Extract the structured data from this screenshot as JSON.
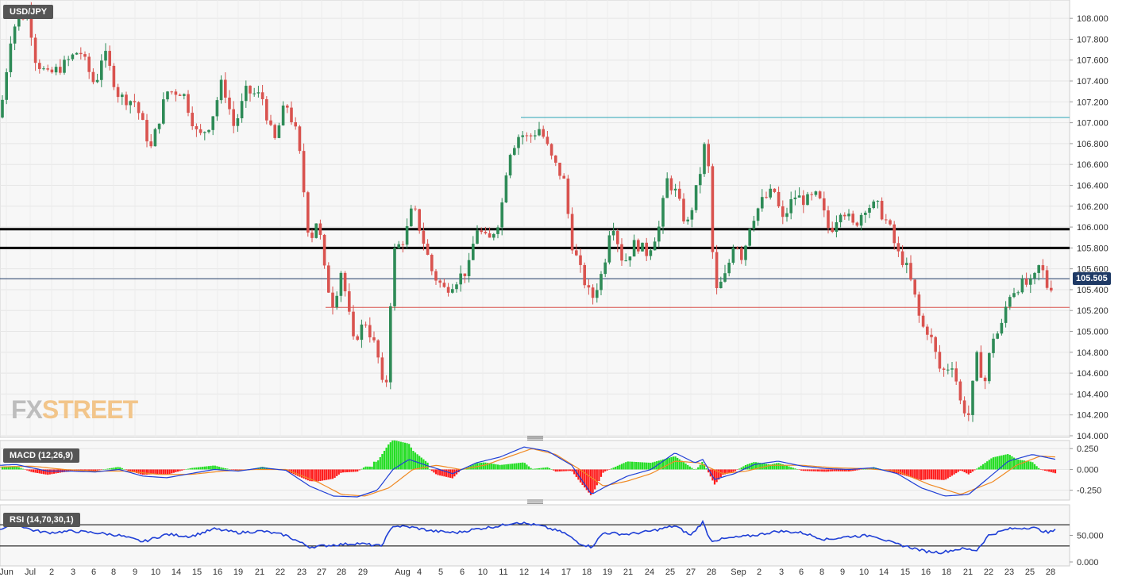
{
  "symbol": "USD/JPY",
  "macd_label": "MACD (12,26,9)",
  "rsi_label": "RSI (14,70,30,1)",
  "watermark": {
    "part1": "FX",
    "part2": "STREET"
  },
  "last_price": "105.505",
  "colors": {
    "up": "#2e8b57",
    "down": "#d9534f",
    "macd_line": "#1f3fd6",
    "signal_line": "#f08a24",
    "hist_up": "#22dd22",
    "hist_down": "#ff1a1a",
    "rsi_line": "#1f3fd6"
  },
  "chart_data": [
    {
      "type": "candlestick",
      "title": "USD/JPY",
      "ylim": [
        104.0,
        108.1
      ],
      "yticks": [
        "108.000",
        "107.800",
        "107.600",
        "107.400",
        "107.200",
        "107.000",
        "106.800",
        "106.600",
        "106.400",
        "106.200",
        "106.000",
        "105.800",
        "105.600",
        "105.400",
        "105.200",
        "105.000",
        "104.800",
        "104.600",
        "104.400",
        "104.200",
        "104.000"
      ],
      "xticks": [
        "Jun",
        "Jul",
        "2",
        "3",
        "6",
        "8",
        "9",
        "10",
        "14",
        "15",
        "16",
        "19",
        "21",
        "22",
        "23",
        "27",
        "28",
        "29",
        "Aug",
        "4",
        "5",
        "6",
        "10",
        "11",
        "12",
        "14",
        "17",
        "18",
        "19",
        "21",
        "24",
        "25",
        "27",
        "28",
        "Sep",
        "2",
        "3",
        "6",
        "8",
        "9",
        "10",
        "14",
        "15",
        "16",
        "18",
        "21",
        "22",
        "23",
        "25",
        "28"
      ],
      "horizontal_levels": [
        {
          "value": 107.05,
          "color": "#2aa3b5"
        },
        {
          "value": 105.98,
          "color": "#000000"
        },
        {
          "value": 105.8,
          "color": "#000000"
        },
        {
          "value": 105.505,
          "color": "#1f3a66"
        },
        {
          "value": 105.23,
          "color": "#d9534f"
        }
      ],
      "price_path": [
        [
          0,
          107.05
        ],
        [
          15,
          107.9
        ],
        [
          35,
          108.08
        ],
        [
          45,
          107.6
        ],
        [
          60,
          107.45
        ],
        [
          80,
          107.55
        ],
        [
          100,
          107.7
        ],
        [
          120,
          107.35
        ],
        [
          130,
          107.7
        ],
        [
          150,
          107.25
        ],
        [
          170,
          107.2
        ],
        [
          190,
          106.75
        ],
        [
          210,
          107.3
        ],
        [
          230,
          107.3
        ],
        [
          250,
          106.85
        ],
        [
          265,
          107.0
        ],
        [
          280,
          107.4
        ],
        [
          295,
          106.95
        ],
        [
          310,
          107.3
        ],
        [
          330,
          107.25
        ],
        [
          345,
          106.8
        ],
        [
          360,
          107.2
        ],
        [
          375,
          106.85
        ],
        [
          390,
          105.85
        ],
        [
          400,
          106.1
        ],
        [
          410,
          105.5
        ],
        [
          420,
          105.25
        ],
        [
          430,
          105.6
        ],
        [
          445,
          104.9
        ],
        [
          460,
          105.1
        ],
        [
          475,
          104.8
        ],
        [
          485,
          104.3
        ],
        [
          495,
          105.75
        ],
        [
          510,
          105.9
        ],
        [
          520,
          106.2
        ],
        [
          530,
          105.95
        ],
        [
          545,
          105.55
        ],
        [
          560,
          105.4
        ],
        [
          575,
          105.5
        ],
        [
          590,
          105.6
        ],
        [
          600,
          106.0
        ],
        [
          615,
          105.85
        ],
        [
          630,
          106.1
        ],
        [
          640,
          106.7
        ],
        [
          655,
          106.9
        ],
        [
          665,
          106.85
        ],
        [
          680,
          106.95
        ],
        [
          695,
          106.65
        ],
        [
          710,
          106.45
        ],
        [
          720,
          105.85
        ],
        [
          730,
          105.6
        ],
        [
          745,
          105.3
        ],
        [
          760,
          105.6
        ],
        [
          770,
          106.1
        ],
        [
          785,
          105.65
        ],
        [
          800,
          105.85
        ],
        [
          815,
          105.75
        ],
        [
          830,
          106.0
        ],
        [
          840,
          106.45
        ],
        [
          850,
          106.35
        ],
        [
          865,
          106.0
        ],
        [
          880,
          106.45
        ],
        [
          890,
          106.9
        ],
        [
          900,
          105.35
        ],
        [
          915,
          105.55
        ],
        [
          925,
          105.9
        ],
        [
          935,
          105.7
        ],
        [
          945,
          106.05
        ],
        [
          960,
          106.25
        ],
        [
          975,
          106.35
        ],
        [
          985,
          106.05
        ],
        [
          1000,
          106.3
        ],
        [
          1015,
          106.25
        ],
        [
          1030,
          106.3
        ],
        [
          1045,
          105.95
        ],
        [
          1060,
          106.2
        ],
        [
          1075,
          106.0
        ],
        [
          1090,
          106.2
        ],
        [
          1105,
          106.2
        ],
        [
          1120,
          106.0
        ],
        [
          1130,
          105.75
        ],
        [
          1140,
          105.65
        ],
        [
          1150,
          105.4
        ],
        [
          1160,
          105.05
        ],
        [
          1170,
          105.0
        ],
        [
          1185,
          104.6
        ],
        [
          1200,
          104.7
        ],
        [
          1210,
          104.3
        ],
        [
          1220,
          104.2
        ],
        [
          1230,
          104.75
        ],
        [
          1240,
          104.5
        ],
        [
          1250,
          104.95
        ],
        [
          1260,
          105.0
        ],
        [
          1270,
          105.35
        ],
        [
          1285,
          105.45
        ],
        [
          1300,
          105.45
        ],
        [
          1310,
          105.65
        ],
        [
          1320,
          105.4
        ],
        [
          1330,
          105.505
        ]
      ]
    },
    {
      "type": "macd",
      "title": "MACD (12,26,9)",
      "ylim": [
        -0.32,
        0.3
      ],
      "yticks": [
        "0.250",
        "0.000",
        "-0.250"
      ],
      "macd_path": [
        [
          0,
          0.05
        ],
        [
          20,
          0.06
        ],
        [
          40,
          0.02
        ],
        [
          60,
          -0.02
        ],
        [
          90,
          -0.02
        ],
        [
          120,
          -0.03
        ],
        [
          150,
          0.0
        ],
        [
          180,
          -0.08
        ],
        [
          210,
          -0.1
        ],
        [
          240,
          -0.05
        ],
        [
          270,
          0.0
        ],
        [
          300,
          -0.02
        ],
        [
          330,
          0.02
        ],
        [
          360,
          -0.01
        ],
        [
          390,
          -0.2
        ],
        [
          420,
          -0.32
        ],
        [
          450,
          -0.33
        ],
        [
          475,
          -0.25
        ],
        [
          495,
          0.0
        ],
        [
          515,
          0.12
        ],
        [
          540,
          0.04
        ],
        [
          570,
          -0.05
        ],
        [
          600,
          0.08
        ],
        [
          630,
          0.15
        ],
        [
          660,
          0.27
        ],
        [
          690,
          0.22
        ],
        [
          720,
          0.05
        ],
        [
          745,
          -0.3
        ],
        [
          760,
          -0.22
        ],
        [
          790,
          -0.08
        ],
        [
          820,
          0.0
        ],
        [
          850,
          0.2
        ],
        [
          875,
          0.08
        ],
        [
          885,
          0.12
        ],
        [
          900,
          -0.12
        ],
        [
          925,
          -0.05
        ],
        [
          950,
          0.06
        ],
        [
          980,
          0.1
        ],
        [
          1010,
          0.04
        ],
        [
          1040,
          0.01
        ],
        [
          1070,
          0.0
        ],
        [
          1100,
          0.02
        ],
        [
          1130,
          -0.05
        ],
        [
          1160,
          -0.22
        ],
        [
          1190,
          -0.32
        ],
        [
          1220,
          -0.3
        ],
        [
          1245,
          -0.1
        ],
        [
          1270,
          0.1
        ],
        [
          1300,
          0.18
        ],
        [
          1330,
          0.12
        ]
      ],
      "signal_path": [
        [
          0,
          0.03
        ],
        [
          40,
          0.04
        ],
        [
          80,
          0.0
        ],
        [
          120,
          -0.02
        ],
        [
          160,
          -0.02
        ],
        [
          200,
          -0.06
        ],
        [
          240,
          -0.06
        ],
        [
          280,
          -0.02
        ],
        [
          320,
          0.0
        ],
        [
          360,
          0.0
        ],
        [
          400,
          -0.15
        ],
        [
          430,
          -0.3
        ],
        [
          460,
          -0.32
        ],
        [
          490,
          -0.22
        ],
        [
          520,
          0.0
        ],
        [
          550,
          0.05
        ],
        [
          580,
          0.0
        ],
        [
          610,
          0.05
        ],
        [
          640,
          0.15
        ],
        [
          670,
          0.25
        ],
        [
          700,
          0.18
        ],
        [
          730,
          0.0
        ],
        [
          760,
          -0.2
        ],
        [
          790,
          -0.14
        ],
        [
          820,
          -0.05
        ],
        [
          850,
          0.1
        ],
        [
          880,
          0.08
        ],
        [
          910,
          -0.05
        ],
        [
          940,
          -0.02
        ],
        [
          970,
          0.05
        ],
        [
          1010,
          0.05
        ],
        [
          1050,
          0.02
        ],
        [
          1090,
          0.01
        ],
        [
          1130,
          -0.02
        ],
        [
          1170,
          -0.18
        ],
        [
          1210,
          -0.3
        ],
        [
          1250,
          -0.15
        ],
        [
          1280,
          0.05
        ],
        [
          1310,
          0.16
        ],
        [
          1330,
          0.15
        ]
      ]
    },
    {
      "type": "rsi",
      "title": "RSI (14,70,30,1)",
      "ylim": [
        0,
        100
      ],
      "yticks": [
        "50.000",
        "0.000"
      ],
      "levels": [
        70,
        30
      ],
      "rsi_path": [
        [
          0,
          62
        ],
        [
          20,
          72
        ],
        [
          40,
          60
        ],
        [
          60,
          55
        ],
        [
          90,
          58
        ],
        [
          120,
          55
        ],
        [
          150,
          50
        ],
        [
          180,
          38
        ],
        [
          210,
          52
        ],
        [
          240,
          48
        ],
        [
          270,
          62
        ],
        [
          300,
          55
        ],
        [
          330,
          58
        ],
        [
          360,
          50
        ],
        [
          390,
          28
        ],
        [
          420,
          32
        ],
        [
          450,
          35
        ],
        [
          480,
          30
        ],
        [
          495,
          68
        ],
        [
          520,
          65
        ],
        [
          545,
          58
        ],
        [
          575,
          55
        ],
        [
          600,
          62
        ],
        [
          630,
          68
        ],
        [
          650,
          75
        ],
        [
          680,
          68
        ],
        [
          710,
          55
        ],
        [
          730,
          35
        ],
        [
          745,
          28
        ],
        [
          760,
          55
        ],
        [
          790,
          52
        ],
        [
          820,
          58
        ],
        [
          850,
          68
        ],
        [
          870,
          50
        ],
        [
          885,
          75
        ],
        [
          895,
          40
        ],
        [
          920,
          45
        ],
        [
          950,
          50
        ],
        [
          980,
          58
        ],
        [
          1010,
          55
        ],
        [
          1040,
          42
        ],
        [
          1070,
          48
        ],
        [
          1100,
          50
        ],
        [
          1125,
          35
        ],
        [
          1145,
          28
        ],
        [
          1165,
          20
        ],
        [
          1185,
          18
        ],
        [
          1210,
          25
        ],
        [
          1230,
          22
        ],
        [
          1245,
          50
        ],
        [
          1270,
          62
        ],
        [
          1300,
          65
        ],
        [
          1320,
          55
        ],
        [
          1330,
          60
        ]
      ]
    }
  ]
}
